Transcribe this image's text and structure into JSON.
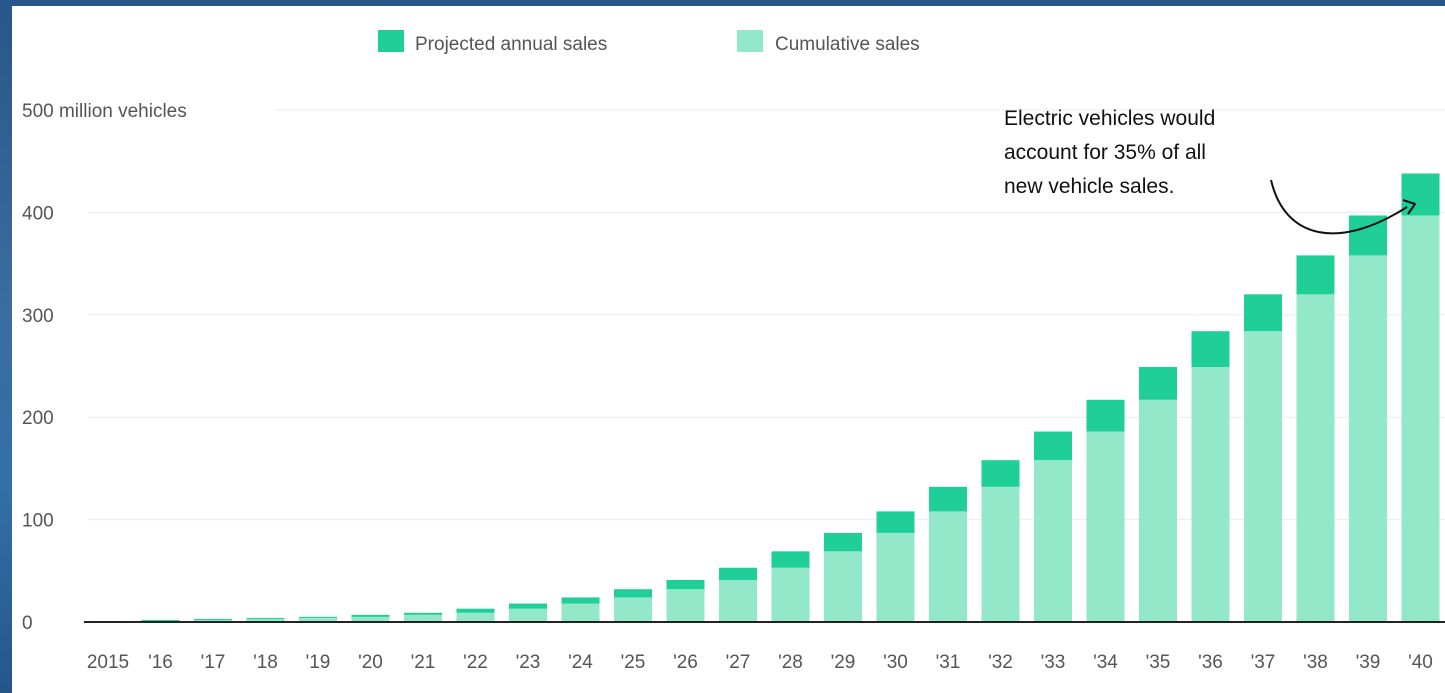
{
  "chart_data": {
    "type": "bar",
    "stacked": true,
    "categories": [
      "2015",
      "'16",
      "'17",
      "'18",
      "'19",
      "'20",
      "'21",
      "'22",
      "'23",
      "'24",
      "'25",
      "'26",
      "'27",
      "'28",
      "'29",
      "'30",
      "'31",
      "'32",
      "'33",
      "'34",
      "'35",
      "'36",
      "'37",
      "'38",
      "'39",
      "'40"
    ],
    "series": [
      {
        "name": "Cumulative sales",
        "color": "#93e8c9",
        "values": [
          0.5,
          1,
          2,
          3,
          4,
          5,
          7,
          9,
          13,
          18,
          24,
          32,
          41,
          53,
          69,
          87,
          108,
          132,
          158,
          186,
          217,
          249,
          284,
          320,
          358,
          397
        ]
      },
      {
        "name": "Projected annual sales",
        "color": "#1fcf97",
        "values": [
          0.5,
          1,
          1,
          1,
          1,
          2,
          2,
          4,
          5,
          6,
          8,
          9,
          12,
          16,
          18,
          21,
          24,
          26,
          28,
          31,
          32,
          35,
          36,
          38,
          39,
          41
        ]
      }
    ],
    "ylim": [
      0,
      500
    ],
    "yticks": [
      0,
      100,
      200,
      300,
      400,
      500
    ],
    "ytick_labels": [
      "0",
      "100",
      "200",
      "300",
      "400",
      "500 million vehicles"
    ],
    "grid": true,
    "legend_placement": "top-center",
    "annotation": {
      "lines": [
        "Electric vehicles would",
        "account for 35% of all",
        "new vehicle sales."
      ],
      "target_category": "'40"
    },
    "axis_color": "#222222"
  }
}
